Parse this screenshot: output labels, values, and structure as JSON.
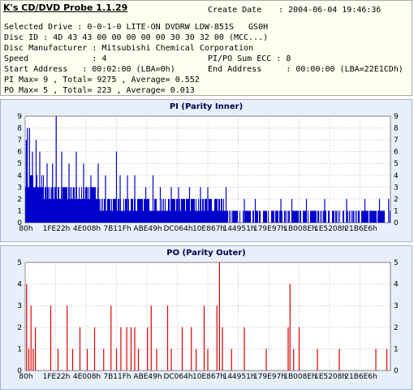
{
  "app": {
    "title": "K's CD/DVD Probe 1.1.29"
  },
  "info": {
    "create_date_label": "Create Date",
    "create_date_value": ": 2004-06-04 19:46:36",
    "lines": [
      {
        "left": "Selected Drive : 0-0-1-0 LITE-ON DVDRW LDW-851S   GS0H",
        "right": ""
      },
      {
        "left": "Disc ID : 4D 43 43 00 00 00 00 00 30 30 32 00 (MCC...)",
        "right": ""
      },
      {
        "left": "Disc Manufacturer : Mitsubishi Chemical Corporation",
        "right": ""
      },
      {
        "left": "Speed             : 4",
        "right": "PI/PO Sum ECC : 8"
      },
      {
        "left": "Start Address   : 00:02:00 (LBA=0h)",
        "right": "End Address     : 00:00:00 (LBA=22E1CDh)"
      },
      {
        "left": "PI Max= 9 , Total= 9275 , Average= 0.552",
        "right": ""
      },
      {
        "left": "PO Max= 5 , Total= 223 , Average= 0.013",
        "right": ""
      }
    ]
  },
  "chart_data": [
    {
      "type": "bar",
      "title": "PI (Parity Inner)",
      "xlabel": "",
      "ylabel": "",
      "ylim": [
        0,
        9
      ],
      "y_ticks": [
        0,
        1,
        2,
        3,
        4,
        5,
        6,
        7,
        8,
        9
      ],
      "x_tick_labels": [
        "80h",
        "1FE22h",
        "4E008h",
        "7B11Fh",
        "ABE49h",
        "DC064h",
        "10E867h",
        "144951h",
        "179E97h",
        "1B008Eh",
        "1E5208h",
        "21B6E6h"
      ],
      "grid": true,
      "color": "#0000cc",
      "baseline_profile": [
        {
          "position": 0.0,
          "value": 4
        },
        {
          "position": 0.05,
          "value": 3
        },
        {
          "position": 0.1,
          "value": 3
        },
        {
          "position": 0.2,
          "value": 2
        },
        {
          "position": 0.5,
          "value": 2
        },
        {
          "position": 0.55,
          "value": 1
        },
        {
          "position": 1.0,
          "value": 1
        }
      ],
      "spikes": [
        {
          "position": 0.003,
          "value": 7
        },
        {
          "position": 0.006,
          "value": 8
        },
        {
          "position": 0.012,
          "value": 8
        },
        {
          "position": 0.02,
          "value": 6
        },
        {
          "position": 0.03,
          "value": 7
        },
        {
          "position": 0.04,
          "value": 6
        },
        {
          "position": 0.06,
          "value": 5
        },
        {
          "position": 0.075,
          "value": 5
        },
        {
          "position": 0.085,
          "value": 9
        },
        {
          "position": 0.1,
          "value": 6
        },
        {
          "position": 0.12,
          "value": 5
        },
        {
          "position": 0.14,
          "value": 6
        },
        {
          "position": 0.16,
          "value": 5
        },
        {
          "position": 0.18,
          "value": 4
        },
        {
          "position": 0.2,
          "value": 5
        },
        {
          "position": 0.22,
          "value": 4
        },
        {
          "position": 0.25,
          "value": 6
        },
        {
          "position": 0.26,
          "value": 4
        },
        {
          "position": 0.28,
          "value": 4
        },
        {
          "position": 0.3,
          "value": 4
        },
        {
          "position": 0.33,
          "value": 3
        },
        {
          "position": 0.35,
          "value": 4
        },
        {
          "position": 0.37,
          "value": 3
        },
        {
          "position": 0.4,
          "value": 3
        },
        {
          "position": 0.42,
          "value": 3
        },
        {
          "position": 0.45,
          "value": 3
        },
        {
          "position": 0.48,
          "value": 3
        },
        {
          "position": 0.5,
          "value": 3
        },
        {
          "position": 0.55,
          "value": 3
        },
        {
          "position": 0.6,
          "value": 2
        },
        {
          "position": 0.63,
          "value": 2
        },
        {
          "position": 0.7,
          "value": 2
        },
        {
          "position": 0.73,
          "value": 2
        },
        {
          "position": 0.77,
          "value": 2
        },
        {
          "position": 0.82,
          "value": 2
        },
        {
          "position": 0.88,
          "value": 2
        },
        {
          "position": 0.93,
          "value": 2
        },
        {
          "position": 0.97,
          "value": 2
        },
        {
          "position": 0.995,
          "value": 2
        }
      ]
    },
    {
      "type": "bar",
      "title": "PO (Parity Outer)",
      "xlabel": "",
      "ylabel": "",
      "ylim": [
        0,
        5
      ],
      "y_ticks": [
        0,
        1,
        2,
        3,
        4,
        5
      ],
      "x_tick_labels": [
        "80h",
        "1FE22h",
        "4E008h",
        "7B11Fh",
        "ABE49h",
        "DC064h",
        "10E867h",
        "144951h",
        "179E97h",
        "1B008Eh",
        "1E5208h",
        "21B6E6h"
      ],
      "grid": true,
      "color": "#dd0000",
      "spikes": [
        {
          "position": 0.004,
          "value": 4
        },
        {
          "position": 0.01,
          "value": 1
        },
        {
          "position": 0.016,
          "value": 3
        },
        {
          "position": 0.022,
          "value": 1
        },
        {
          "position": 0.028,
          "value": 2
        },
        {
          "position": 0.07,
          "value": 3
        },
        {
          "position": 0.09,
          "value": 1
        },
        {
          "position": 0.115,
          "value": 3
        },
        {
          "position": 0.13,
          "value": 1
        },
        {
          "position": 0.15,
          "value": 2
        },
        {
          "position": 0.17,
          "value": 1
        },
        {
          "position": 0.19,
          "value": 2
        },
        {
          "position": 0.215,
          "value": 1
        },
        {
          "position": 0.235,
          "value": 3
        },
        {
          "position": 0.25,
          "value": 1
        },
        {
          "position": 0.262,
          "value": 2
        },
        {
          "position": 0.278,
          "value": 2
        },
        {
          "position": 0.29,
          "value": 2
        },
        {
          "position": 0.3,
          "value": 2
        },
        {
          "position": 0.31,
          "value": 1
        },
        {
          "position": 0.335,
          "value": 2
        },
        {
          "position": 0.345,
          "value": 3
        },
        {
          "position": 0.36,
          "value": 1
        },
        {
          "position": 0.39,
          "value": 3
        },
        {
          "position": 0.4,
          "value": 1
        },
        {
          "position": 0.43,
          "value": 2
        },
        {
          "position": 0.455,
          "value": 2
        },
        {
          "position": 0.468,
          "value": 1
        },
        {
          "position": 0.49,
          "value": 3
        },
        {
          "position": 0.5,
          "value": 1
        },
        {
          "position": 0.525,
          "value": 3
        },
        {
          "position": 0.532,
          "value": 5
        },
        {
          "position": 0.54,
          "value": 2
        },
        {
          "position": 0.565,
          "value": 1
        },
        {
          "position": 0.6,
          "value": 2
        },
        {
          "position": 0.66,
          "value": 1
        },
        {
          "position": 0.72,
          "value": 2
        },
        {
          "position": 0.725,
          "value": 4
        },
        {
          "position": 0.735,
          "value": 1
        },
        {
          "position": 0.75,
          "value": 2
        },
        {
          "position": 0.8,
          "value": 1
        },
        {
          "position": 0.86,
          "value": 1
        },
        {
          "position": 0.96,
          "value": 1
        },
        {
          "position": 0.99,
          "value": 1
        }
      ]
    }
  ]
}
